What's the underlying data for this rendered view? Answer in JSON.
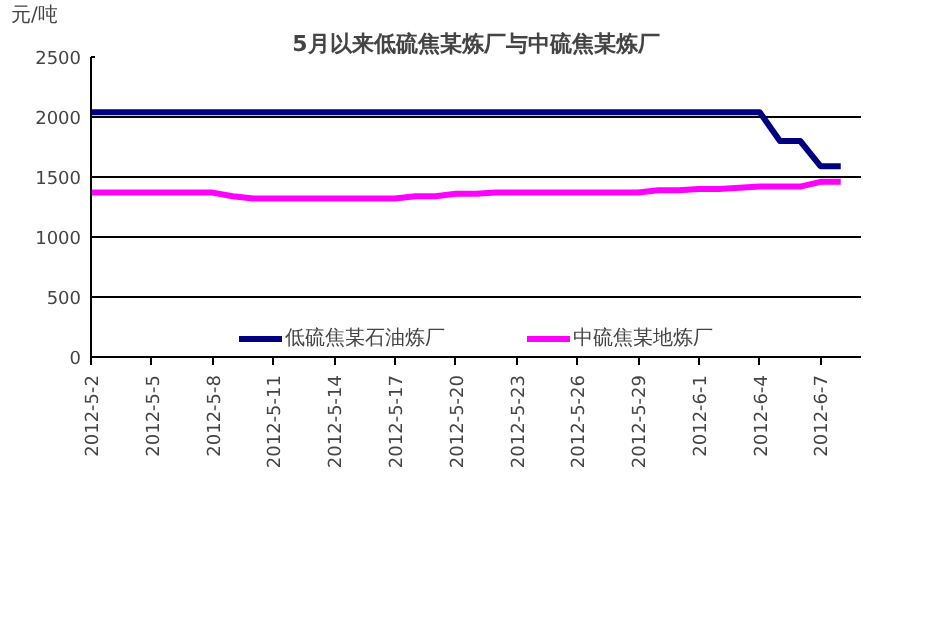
{
  "chart_data": {
    "type": "line",
    "title": "5月以来低硫焦某炼厂与中硫焦某炼厂",
    "ylabel": "元/吨",
    "x": [
      "2012-05-02",
      "2012-05-03",
      "2012-05-04",
      "2012-05-05",
      "2012-05-06",
      "2012-05-07",
      "2012-05-08",
      "2012-05-09",
      "2012-05-10",
      "2012-05-11",
      "2012-05-12",
      "2012-05-13",
      "2012-05-14",
      "2012-05-15",
      "2012-05-16",
      "2012-05-17",
      "2012-05-18",
      "2012-05-19",
      "2012-05-20",
      "2012-05-21",
      "2012-05-22",
      "2012-05-23",
      "2012-05-24",
      "2012-05-25",
      "2012-05-26",
      "2012-05-27",
      "2012-05-28",
      "2012-05-29",
      "2012-05-30",
      "2012-05-31",
      "2012-06-01",
      "2012-06-02",
      "2012-06-03",
      "2012-06-04",
      "2012-06-05",
      "2012-06-06",
      "2012-06-07",
      "2012-06-08"
    ],
    "series": [
      {
        "name": "低硫焦某石油炼厂",
        "color": "#000080",
        "values": [
          2040,
          2040,
          2040,
          2040,
          2040,
          2040,
          2040,
          2040,
          2040,
          2040,
          2040,
          2040,
          2040,
          2040,
          2040,
          2040,
          2040,
          2040,
          2040,
          2040,
          2040,
          2040,
          2040,
          2040,
          2040,
          2040,
          2040,
          2040,
          2040,
          2040,
          2040,
          2040,
          2040,
          2040,
          1800,
          1800,
          1590,
          1590
        ]
      },
      {
        "name": "中硫焦某地炼厂",
        "color": "#ff00ff",
        "values": [
          1370,
          1370,
          1370,
          1370,
          1370,
          1370,
          1370,
          1340,
          1320,
          1320,
          1320,
          1320,
          1320,
          1320,
          1320,
          1320,
          1340,
          1340,
          1360,
          1360,
          1370,
          1370,
          1370,
          1370,
          1370,
          1370,
          1370,
          1370,
          1390,
          1390,
          1400,
          1400,
          1410,
          1420,
          1420,
          1420,
          1460,
          1460
        ]
      }
    ],
    "xlim": [
      "2012-05-02",
      "2012-06-09"
    ],
    "xticks": [
      {
        "value": "2012-05-02",
        "label": "2012-5-2"
      },
      {
        "value": "2012-05-05",
        "label": "2012-5-5"
      },
      {
        "value": "2012-05-08",
        "label": "2012-5-8"
      },
      {
        "value": "2012-05-11",
        "label": "2012-5-11"
      },
      {
        "value": "2012-05-14",
        "label": "2012-5-14"
      },
      {
        "value": "2012-05-17",
        "label": "2012-5-17"
      },
      {
        "value": "2012-05-20",
        "label": "2012-5-20"
      },
      {
        "value": "2012-05-23",
        "label": "2012-5-23"
      },
      {
        "value": "2012-05-26",
        "label": "2012-5-26"
      },
      {
        "value": "2012-05-29",
        "label": "2012-5-29"
      },
      {
        "value": "2012-06-01",
        "label": "2012-6-1"
      },
      {
        "value": "2012-06-04",
        "label": "2012-6-4"
      },
      {
        "value": "2012-06-07",
        "label": "2012-6-7"
      }
    ],
    "ylim": [
      0,
      2500
    ],
    "yticks": [
      0,
      500,
      1000,
      1500,
      2000,
      2500
    ],
    "grid": "y",
    "legend": "bottom"
  }
}
